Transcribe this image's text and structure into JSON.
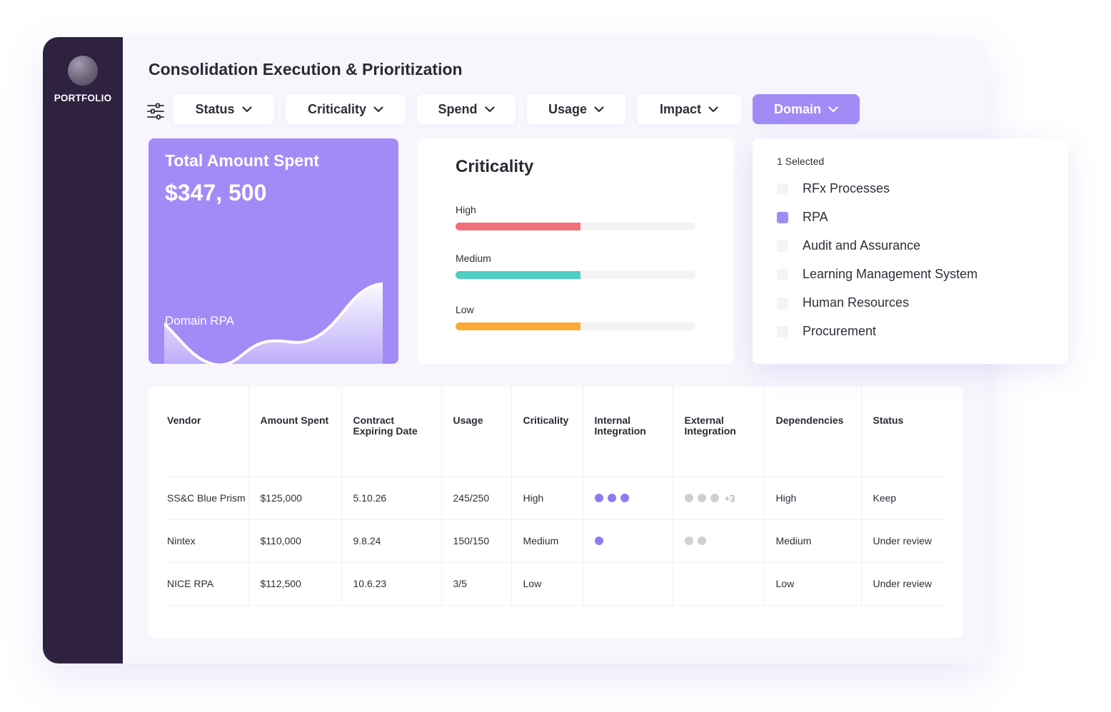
{
  "sidebar": {
    "brand": "PORTFOLIO"
  },
  "page": {
    "title": "Consolidation Execution & Prioritization"
  },
  "filters": [
    {
      "label": "Status",
      "active": false
    },
    {
      "label": "Criticality",
      "active": false
    },
    {
      "label": "Spend",
      "active": false
    },
    {
      "label": "Usage",
      "active": false
    },
    {
      "label": "Impact",
      "active": false
    },
    {
      "label": "Domain",
      "active": true
    }
  ],
  "spend_card": {
    "label": "Total Amount Spent",
    "amount": "$347, 500",
    "domain": "Domain RPA"
  },
  "criticality_card": {
    "title": "Criticality",
    "rows": [
      {
        "name": "High",
        "fraction": 0.52,
        "color": "#f2707a"
      },
      {
        "name": "Medium",
        "fraction": 0.52,
        "color": "#4ecdc4"
      },
      {
        "name": "Low",
        "fraction": 0.52,
        "color": "#fba935"
      }
    ]
  },
  "domain_dropdown": {
    "selected_count": "1 Selected",
    "options": [
      {
        "label": "RFx Processes",
        "checked": false
      },
      {
        "label": "RPA",
        "checked": true
      },
      {
        "label": "Audit and Assurance",
        "checked": false
      },
      {
        "label": "Learning Management System",
        "checked": false
      },
      {
        "label": "Human Resources",
        "checked": false
      },
      {
        "label": "Procurement",
        "checked": false
      }
    ]
  },
  "table": {
    "headers": {
      "vendor": "Vendor",
      "amount": "Amount Spent",
      "contract_1": "Contract",
      "contract_2": "Expiring Date",
      "usage": "Usage",
      "criticality": "Criticality",
      "internal_1": "Internal",
      "internal_2": "Integration",
      "external_1": "External",
      "external_2": "Integration",
      "dependencies": "Dependencies",
      "status": "Status"
    },
    "rows": [
      {
        "vendor": "SS&C Blue Prism",
        "amount": "$125,000",
        "expiry": "5.10.26",
        "usage": "245/250",
        "criticality": "High",
        "internal_dots": 3,
        "external_dots": 3,
        "external_more": "+3",
        "dependencies": "High",
        "status": "Keep"
      },
      {
        "vendor": "Nintex",
        "amount": "$110,000",
        "expiry": "9.8.24",
        "usage": "150/150",
        "criticality": "Medium",
        "internal_dots": 1,
        "external_dots": 2,
        "external_more": "",
        "dependencies": "Medium",
        "status": "Under review"
      },
      {
        "vendor": "NICE RPA",
        "amount": "$112,500",
        "expiry": "10.6.23",
        "usage": "3/5",
        "criticality": "Low",
        "internal_dots": 0,
        "external_dots": 0,
        "external_more": "",
        "dependencies": "Low",
        "status": "Under review"
      }
    ]
  },
  "colors": {
    "sidebar": "#2f2140",
    "accent": "#a18cf6",
    "dot_internal": "#8f7bf1",
    "dot_external": "#cfcfd4"
  }
}
